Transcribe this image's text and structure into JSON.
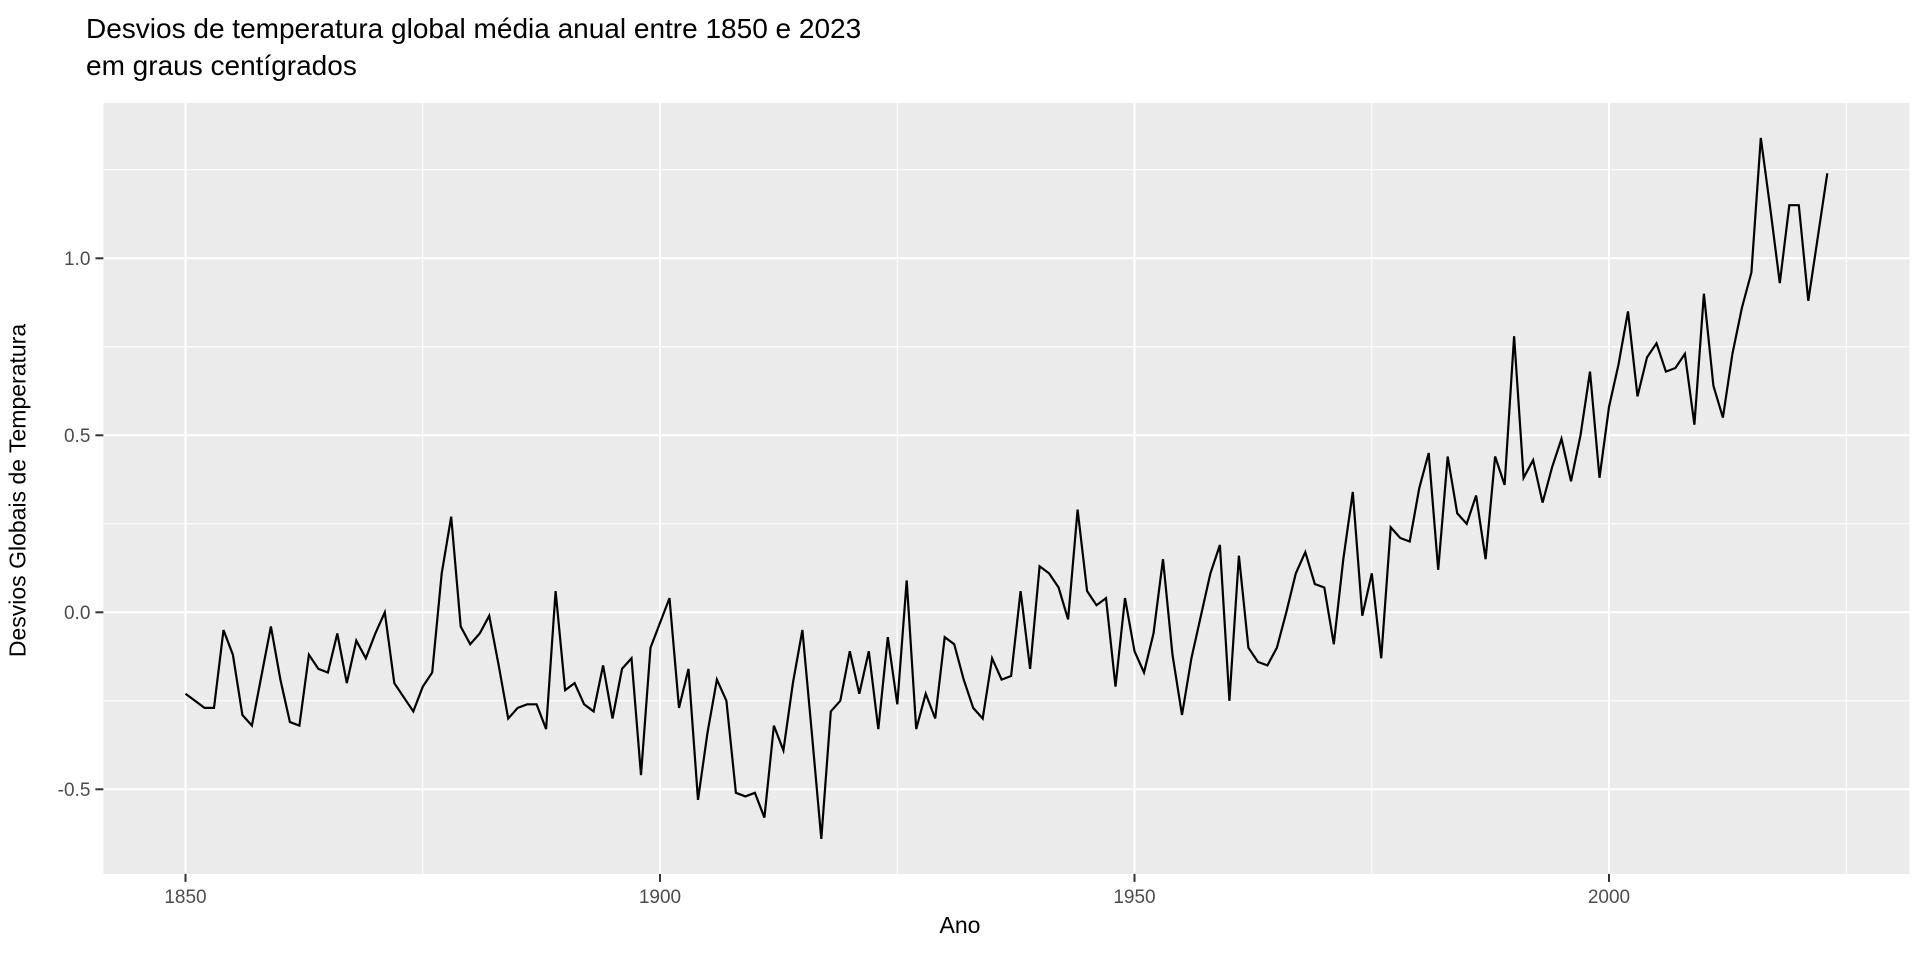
{
  "title": {
    "line1": "Desvios de temperatura global média anual entre 1850 e 2023",
    "line2": " em graus centígrados"
  },
  "colors": {
    "page_bg": "#FFFFFF",
    "panel_bg": "#EBEBEB",
    "grid_major": "#FFFFFF",
    "grid_minor": "#FFFFFF",
    "series_line": "#000000",
    "tick_label": "#4D4D4D",
    "tick_mark": "#333333",
    "title_text": "#000000"
  },
  "chart_data": {
    "type": "line",
    "title": "Desvios de temperatura global média anual entre 1850 e 2023\n em graus centígrados",
    "x_label": "Ano",
    "y_label": "Desvios Globais de Temperatura",
    "x_tick_labels": [
      "1850",
      "1900",
      "1950",
      "2000"
    ],
    "x_ticks": [
      1850,
      1900,
      1950,
      2000
    ],
    "x_minor_ticks": [
      1875,
      1925,
      1975,
      2025
    ],
    "y_tick_labels": [
      "1.0",
      "0.5",
      "0.0",
      "-0.5"
    ],
    "y_ticks": [
      1.0,
      0.5,
      0.0,
      -0.5
    ],
    "y_minor_ticks": [
      1.25,
      0.75,
      0.25,
      -0.25
    ],
    "xlim": [
      1841.35,
      2031.65
    ],
    "ylim": [
      -0.74,
      1.44
    ],
    "grid": true,
    "legend_position": "none",
    "series": [
      {
        "name": "Desvios Globais de Temperatura",
        "years": [
          1850,
          1851,
          1852,
          1853,
          1854,
          1855,
          1856,
          1857,
          1858,
          1859,
          1860,
          1861,
          1862,
          1863,
          1864,
          1865,
          1866,
          1867,
          1868,
          1869,
          1870,
          1871,
          1872,
          1873,
          1874,
          1875,
          1876,
          1877,
          1878,
          1879,
          1880,
          1881,
          1882,
          1883,
          1884,
          1885,
          1886,
          1887,
          1888,
          1889,
          1890,
          1891,
          1892,
          1893,
          1894,
          1895,
          1896,
          1897,
          1898,
          1899,
          1900,
          1901,
          1902,
          1903,
          1904,
          1905,
          1906,
          1907,
          1908,
          1909,
          1910,
          1911,
          1912,
          1913,
          1914,
          1915,
          1916,
          1917,
          1918,
          1919,
          1920,
          1921,
          1922,
          1923,
          1924,
          1925,
          1926,
          1927,
          1928,
          1929,
          1930,
          1931,
          1932,
          1933,
          1934,
          1935,
          1936,
          1937,
          1938,
          1939,
          1940,
          1941,
          1942,
          1943,
          1944,
          1945,
          1946,
          1947,
          1948,
          1949,
          1950,
          1951,
          1952,
          1953,
          1954,
          1955,
          1956,
          1957,
          1958,
          1959,
          1960,
          1961,
          1962,
          1963,
          1964,
          1965,
          1966,
          1967,
          1968,
          1969,
          1970,
          1971,
          1972,
          1973,
          1974,
          1975,
          1976,
          1977,
          1978,
          1979,
          1980,
          1981,
          1982,
          1983,
          1984,
          1985,
          1986,
          1987,
          1988,
          1989,
          1990,
          1991,
          1992,
          1993,
          1994,
          1995,
          1996,
          1997,
          1998,
          1999,
          2000,
          2001,
          2002,
          2003,
          2004,
          2005,
          2006,
          2007,
          2008,
          2009,
          2010,
          2011,
          2012,
          2013,
          2014,
          2015,
          2016,
          2017,
          2018,
          2019,
          2020,
          2021,
          2022,
          2023
        ],
        "values": [
          -0.23,
          -0.25,
          -0.27,
          -0.27,
          -0.05,
          -0.12,
          -0.29,
          -0.32,
          -0.18,
          -0.04,
          -0.19,
          -0.31,
          -0.32,
          -0.12,
          -0.16,
          -0.17,
          -0.06,
          -0.2,
          -0.08,
          -0.13,
          -0.06,
          0.0,
          -0.2,
          -0.24,
          -0.28,
          -0.21,
          -0.17,
          0.11,
          0.27,
          -0.04,
          -0.09,
          -0.06,
          -0.01,
          -0.15,
          -0.3,
          -0.27,
          -0.26,
          -0.26,
          -0.33,
          0.06,
          -0.22,
          -0.2,
          -0.26,
          -0.28,
          -0.15,
          -0.3,
          -0.16,
          -0.13,
          -0.46,
          -0.1,
          -0.03,
          0.04,
          -0.27,
          -0.16,
          -0.53,
          -0.34,
          -0.19,
          -0.25,
          -0.51,
          -0.52,
          -0.51,
          -0.58,
          -0.32,
          -0.39,
          -0.2,
          -0.05,
          -0.34,
          -0.64,
          -0.28,
          -0.25,
          -0.11,
          -0.23,
          -0.11,
          -0.33,
          -0.07,
          -0.26,
          0.09,
          -0.33,
          -0.23,
          -0.3,
          -0.07,
          -0.09,
          -0.19,
          -0.27,
          -0.3,
          -0.13,
          -0.19,
          -0.18,
          0.06,
          -0.16,
          0.13,
          0.11,
          0.07,
          -0.02,
          0.29,
          0.06,
          0.02,
          0.04,
          -0.21,
          0.04,
          -0.11,
          -0.17,
          -0.06,
          0.15,
          -0.12,
          -0.29,
          -0.13,
          -0.01,
          0.11,
          0.19,
          -0.25,
          0.16,
          -0.1,
          -0.14,
          -0.15,
          -0.1,
          0.0,
          0.11,
          0.17,
          0.08,
          0.07,
          -0.09,
          0.15,
          0.34,
          -0.01,
          0.11,
          -0.13,
          0.24,
          0.21,
          0.2,
          0.35,
          0.45,
          0.12,
          0.44,
          0.28,
          0.25,
          0.33,
          0.15,
          0.44,
          0.36,
          0.78,
          0.38,
          0.43,
          0.31,
          0.41,
          0.49,
          0.37,
          0.5,
          0.68,
          0.38,
          0.58,
          0.7,
          0.85,
          0.61,
          0.72,
          0.76,
          0.68,
          0.69,
          0.73,
          0.53,
          0.9,
          0.64,
          0.55,
          0.73,
          0.86,
          0.96,
          1.34,
          1.14,
          0.93,
          1.15,
          1.15,
          0.88,
          1.06,
          1.24
        ]
      }
    ]
  }
}
